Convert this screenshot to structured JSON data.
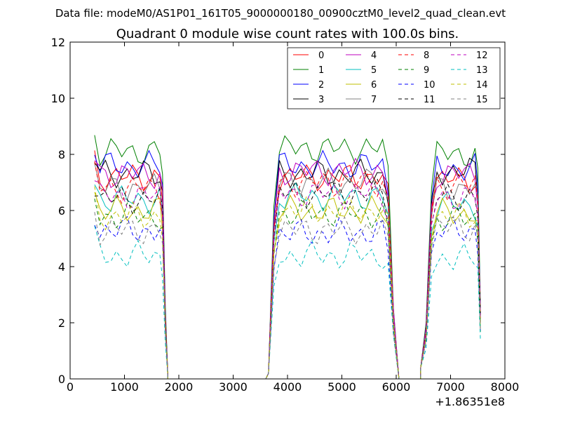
{
  "chart_data": {
    "type": "line",
    "suptitle": "Data file: modeM0/AS1P01_161T05_9000000180_00900cztM0_level2_quad_clean.evt",
    "title": "Quadrant 0 module wise count rates with 100.0s bins.",
    "xlabel": "",
    "ylabel": "",
    "x_offset_label": "+1.86351e8",
    "xlim": [
      0,
      8000
    ],
    "ylim": [
      0,
      12
    ],
    "xticks": [
      0,
      1000,
      2000,
      3000,
      4000,
      5000,
      6000,
      7000,
      8000
    ],
    "yticks": [
      0,
      2,
      4,
      6,
      8,
      10,
      12
    ],
    "legend_position": "top-right",
    "legend_columns": 4,
    "grid": false,
    "segments": [
      {
        "x": [
          450,
          550,
          650,
          750,
          850,
          950,
          1050,
          1150,
          1250,
          1350,
          1450,
          1550,
          1650,
          1700,
          1750
        ],
        "zero_after": [
          1800,
          3600
        ]
      },
      {
        "x": [
          3650,
          3750,
          3850,
          3950,
          4050,
          4150,
          4250,
          4350,
          4450,
          4550,
          4650,
          4750,
          4850,
          4950,
          5050,
          5150,
          5250,
          5350,
          5450,
          5550,
          5650,
          5750,
          5850,
          5950
        ],
        "zero_after": [
          6050,
          6450
        ]
      },
      {
        "x": [
          6450,
          6550,
          6650,
          6750,
          6850,
          6950,
          7050,
          7150,
          7250,
          7350,
          7450,
          7500,
          7550
        ]
      }
    ],
    "series": [
      {
        "name": "0",
        "color": "#ff0000",
        "dash": "solid",
        "level_a": 7.2,
        "level_b": 7.2,
        "level_c": 7.1
      },
      {
        "name": "1",
        "color": "#008000",
        "dash": "solid",
        "level_a": 8.1,
        "level_b": 8.2,
        "level_c": 8.0
      },
      {
        "name": "2",
        "color": "#0000ff",
        "dash": "solid",
        "level_a": 7.6,
        "level_b": 7.6,
        "level_c": 7.5
      },
      {
        "name": "3",
        "color": "#000000",
        "dash": "solid",
        "level_a": 7.3,
        "level_b": 7.3,
        "level_c": 7.4
      },
      {
        "name": "4",
        "color": "#bf00bf",
        "dash": "solid",
        "level_a": 7.3,
        "level_b": 7.4,
        "level_c": 7.3
      },
      {
        "name": "5",
        "color": "#00bfbf",
        "dash": "solid",
        "level_a": 6.4,
        "level_b": 6.5,
        "level_c": 6.2
      },
      {
        "name": "6",
        "color": "#bfbf00",
        "dash": "solid",
        "level_a": 6.0,
        "level_b": 6.0,
        "level_c": 5.9
      },
      {
        "name": "7",
        "color": "#808080",
        "dash": "solid",
        "level_a": 6.8,
        "level_b": 7.0,
        "level_c": 6.8
      },
      {
        "name": "8",
        "color": "#ff0000",
        "dash": "dashed",
        "level_a": 6.8,
        "level_b": 7.0,
        "level_c": 6.9
      },
      {
        "name": "9",
        "color": "#008000",
        "dash": "dashed",
        "level_a": 5.8,
        "level_b": 5.9,
        "level_c": 5.7
      },
      {
        "name": "10",
        "color": "#0000ff",
        "dash": "dashed",
        "level_a": 5.3,
        "level_b": 5.2,
        "level_c": 5.3
      },
      {
        "name": "11",
        "color": "#000000",
        "dash": "dashed",
        "level_a": 6.4,
        "level_b": 6.6,
        "level_c": 6.5
      },
      {
        "name": "12",
        "color": "#bf00bf",
        "dash": "dashed",
        "level_a": 6.5,
        "level_b": 6.6,
        "level_c": 6.5
      },
      {
        "name": "13",
        "color": "#00bfbf",
        "dash": "dashed",
        "level_a": 4.4,
        "level_b": 4.4,
        "level_c": 4.3
      },
      {
        "name": "14",
        "color": "#bfbf00",
        "dash": "dashed",
        "level_a": 5.8,
        "level_b": 6.0,
        "level_c": 5.8
      },
      {
        "name": "15",
        "color": "#808080",
        "dash": "dashed",
        "level_a": 5.3,
        "level_b": 5.3,
        "level_c": 5.4
      }
    ]
  }
}
